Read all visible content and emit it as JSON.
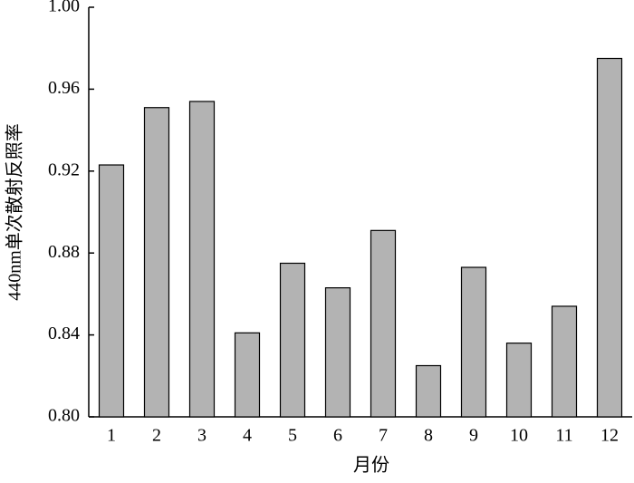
{
  "chart_data": {
    "type": "bar",
    "x_label": "月份",
    "y_label": "440nm单次散射反照率",
    "categories": [
      "1",
      "2",
      "3",
      "4",
      "5",
      "6",
      "7",
      "8",
      "9",
      "10",
      "11",
      "12"
    ],
    "values": [
      0.923,
      0.951,
      0.954,
      0.841,
      0.875,
      0.863,
      0.891,
      0.825,
      0.873,
      0.836,
      0.854,
      0.975
    ],
    "color": "#b3b3b3",
    "ylim": [
      0.8,
      1.0
    ],
    "yticks": [
      {
        "value": 0.8,
        "label": "0.80"
      },
      0.84,
      0.88,
      0.92,
      0.96,
      {
        "value": 1.0,
        "label": "1.00"
      }
    ]
  }
}
